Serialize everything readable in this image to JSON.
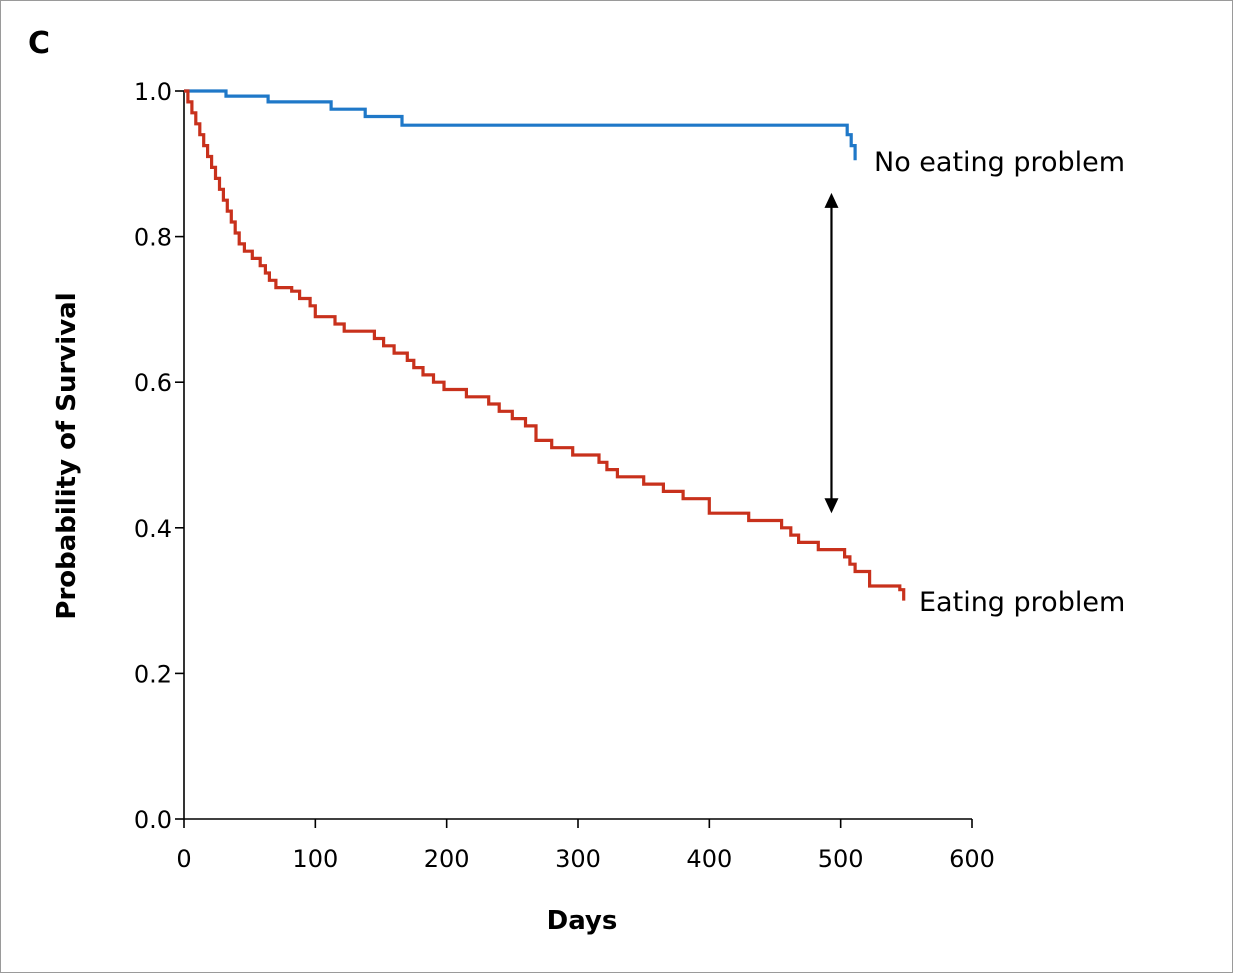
{
  "panel_label": "C",
  "chart_data": {
    "type": "line",
    "step": true,
    "xlabel": "Days",
    "ylabel": "Probability of Survival",
    "xlim": [
      0,
      600
    ],
    "ylim": [
      0.0,
      1.0
    ],
    "x_ticks": [
      0,
      100,
      200,
      300,
      400,
      500,
      600
    ],
    "x_tick_labels": [
      "0",
      "100",
      "200",
      "300",
      "400",
      "500",
      "600"
    ],
    "y_ticks": [
      0.0,
      0.2,
      0.4,
      0.6,
      0.8,
      1.0
    ],
    "y_tick_labels": [
      "0.0",
      "0.2",
      "0.4",
      "0.6",
      "0.8",
      "1.0"
    ],
    "grid": false,
    "series": [
      {
        "name": "No eating problem",
        "color": "#1f78c8",
        "points": [
          [
            0,
            1.0
          ],
          [
            32,
            0.993
          ],
          [
            64,
            0.985
          ],
          [
            112,
            0.975
          ],
          [
            138,
            0.965
          ],
          [
            166,
            0.953
          ],
          [
            505,
            0.94
          ],
          [
            508,
            0.925
          ],
          [
            511,
            0.905
          ]
        ]
      },
      {
        "name": "Eating problem",
        "color": "#c8311c",
        "points": [
          [
            0,
            1.0
          ],
          [
            3,
            0.985
          ],
          [
            6,
            0.97
          ],
          [
            9,
            0.955
          ],
          [
            12,
            0.94
          ],
          [
            15,
            0.925
          ],
          [
            18,
            0.91
          ],
          [
            21,
            0.895
          ],
          [
            24,
            0.88
          ],
          [
            27,
            0.865
          ],
          [
            30,
            0.85
          ],
          [
            33,
            0.835
          ],
          [
            36,
            0.82
          ],
          [
            39,
            0.805
          ],
          [
            42,
            0.79
          ],
          [
            46,
            0.78
          ],
          [
            52,
            0.77
          ],
          [
            58,
            0.76
          ],
          [
            62,
            0.75
          ],
          [
            65,
            0.74
          ],
          [
            70,
            0.73
          ],
          [
            82,
            0.725
          ],
          [
            88,
            0.715
          ],
          [
            96,
            0.705
          ],
          [
            100,
            0.69
          ],
          [
            115,
            0.68
          ],
          [
            122,
            0.67
          ],
          [
            145,
            0.66
          ],
          [
            152,
            0.65
          ],
          [
            160,
            0.64
          ],
          [
            170,
            0.63
          ],
          [
            175,
            0.62
          ],
          [
            182,
            0.61
          ],
          [
            190,
            0.6
          ],
          [
            198,
            0.59
          ],
          [
            215,
            0.58
          ],
          [
            232,
            0.57
          ],
          [
            240,
            0.56
          ],
          [
            250,
            0.55
          ],
          [
            260,
            0.54
          ],
          [
            268,
            0.52
          ],
          [
            280,
            0.51
          ],
          [
            296,
            0.5
          ],
          [
            316,
            0.49
          ],
          [
            322,
            0.48
          ],
          [
            330,
            0.47
          ],
          [
            350,
            0.46
          ],
          [
            365,
            0.45
          ],
          [
            380,
            0.44
          ],
          [
            400,
            0.42
          ],
          [
            430,
            0.41
          ],
          [
            455,
            0.4
          ],
          [
            462,
            0.39
          ],
          [
            468,
            0.38
          ],
          [
            483,
            0.37
          ],
          [
            503,
            0.36
          ],
          [
            507,
            0.35
          ],
          [
            511,
            0.34
          ],
          [
            522,
            0.32
          ],
          [
            545,
            0.315
          ],
          [
            548,
            0.3
          ]
        ]
      }
    ],
    "annotations": [
      {
        "type": "double-arrow",
        "x": 493,
        "y_from": 0.42,
        "y_to": 0.86
      }
    ]
  }
}
